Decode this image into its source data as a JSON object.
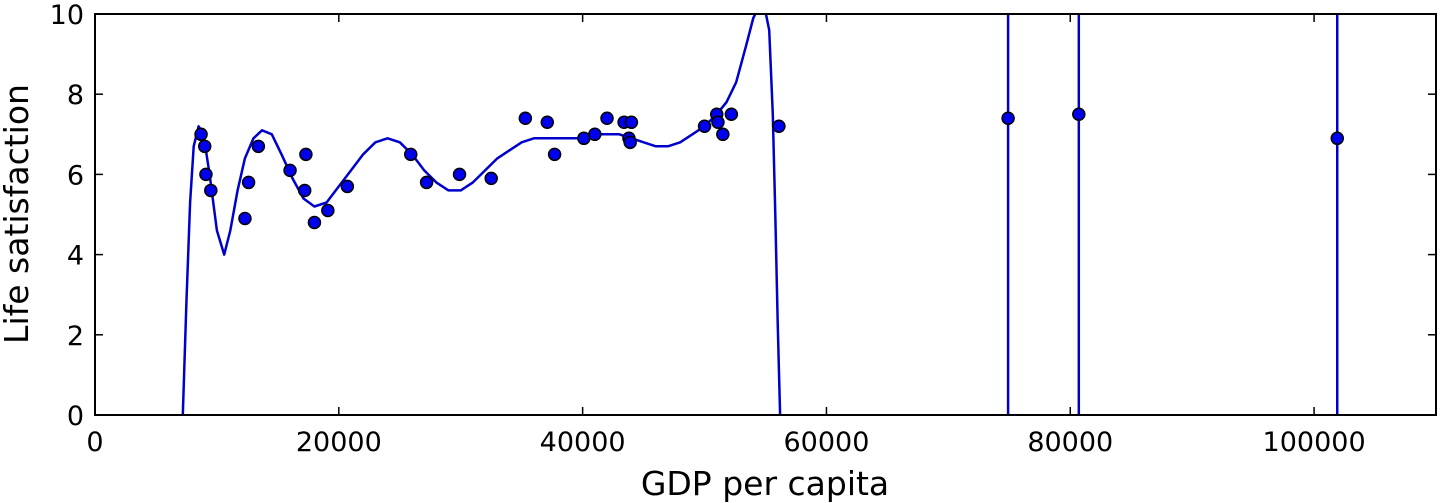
{
  "chart_data": {
    "type": "scatter",
    "title": "",
    "xlabel": "GDP per capita",
    "ylabel": "Life satisfaction",
    "xlim": [
      0,
      110000
    ],
    "ylim": [
      0,
      10
    ],
    "x_ticks": [
      0,
      20000,
      40000,
      60000,
      80000,
      100000
    ],
    "x_tick_labels": [
      "0",
      "20000",
      "40000",
      "60000",
      "80000",
      "100000"
    ],
    "y_ticks": [
      0,
      2,
      4,
      6,
      8,
      10
    ],
    "y_tick_labels": [
      "0",
      "2",
      "4",
      "6",
      "8",
      "10"
    ],
    "grid": false,
    "legend": "none",
    "colors": {
      "points": "#0000ee",
      "line": "#0000cc",
      "axes": "#000000"
    },
    "series": [
      {
        "kind": "points",
        "x": [
          8700,
          9000,
          9100,
          9500,
          12300,
          12600,
          13400,
          16000,
          17200,
          17300,
          18000,
          19100,
          20700,
          25900,
          27200,
          29900,
          32500,
          35300,
          37100,
          37700,
          40100,
          41000,
          42000,
          43400,
          43800,
          43900,
          44000,
          50000,
          51000,
          51100,
          51500,
          52200,
          56100,
          74900,
          80700,
          101900
        ],
        "y": [
          7.0,
          6.7,
          6.0,
          5.6,
          4.9,
          5.8,
          6.7,
          6.1,
          5.6,
          6.5,
          4.8,
          5.1,
          5.7,
          6.5,
          5.8,
          6.0,
          5.9,
          7.4,
          7.3,
          6.5,
          6.9,
          7.0,
          7.4,
          7.3,
          6.9,
          6.8,
          7.3,
          7.2,
          7.5,
          7.3,
          7.0,
          7.5,
          7.2,
          7.4,
          7.5,
          6.9
        ]
      },
      {
        "kind": "fit-line",
        "x": [
          7200,
          7500,
          7800,
          8100,
          8500,
          8900,
          9400,
          10000,
          10600,
          11100,
          11700,
          12300,
          13000,
          13700,
          14500,
          15300,
          16200,
          17100,
          18000,
          19000,
          20000,
          21000,
          22000,
          23000,
          24000,
          25000,
          26000,
          27000,
          28000,
          29000,
          30000,
          31000,
          32000,
          33000,
          34000,
          35000,
          36000,
          37000,
          38000,
          39000,
          40000,
          41000,
          42000,
          43000,
          44000,
          45000,
          46000,
          47000,
          48000,
          49000,
          50000,
          51000,
          51800,
          52600,
          53400,
          54000,
          54500,
          54900,
          55300,
          55600,
          55800,
          56000,
          56200
        ],
        "y": [
          0.0,
          2.8,
          5.3,
          6.7,
          7.2,
          7.0,
          6.0,
          4.6,
          4.0,
          4.6,
          5.6,
          6.4,
          6.9,
          7.1,
          7.0,
          6.5,
          5.9,
          5.4,
          5.2,
          5.3,
          5.7,
          6.1,
          6.5,
          6.8,
          6.9,
          6.8,
          6.5,
          6.1,
          5.8,
          5.6,
          5.6,
          5.8,
          6.1,
          6.4,
          6.6,
          6.8,
          6.9,
          6.9,
          6.9,
          6.9,
          6.9,
          7.0,
          7.0,
          7.0,
          6.9,
          6.8,
          6.7,
          6.7,
          6.8,
          7.0,
          7.2,
          7.5,
          7.8,
          8.3,
          9.2,
          9.9,
          10.2,
          10.2,
          9.6,
          7.5,
          5.0,
          2.3,
          0.0
        ]
      },
      {
        "kind": "spike",
        "x": [
          74900,
          80700,
          101900
        ]
      }
    ]
  }
}
